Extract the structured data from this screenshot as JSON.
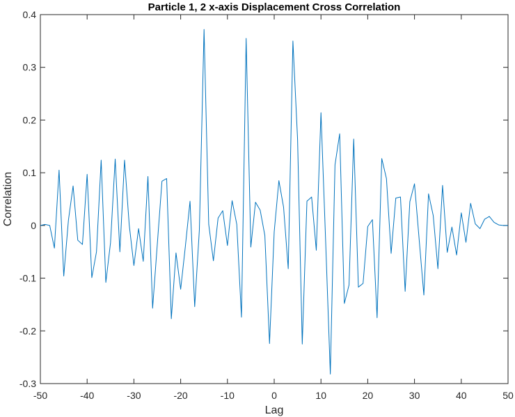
{
  "chart_data": {
    "type": "line",
    "title": "Particle 1, 2 x-axis Displacement Cross Correlation",
    "xlabel": "Lag",
    "ylabel": "Correlation",
    "xlim": [
      -50,
      50
    ],
    "ylim": [
      -0.3,
      0.4
    ],
    "xticks": [
      -50,
      -40,
      -30,
      -20,
      -10,
      0,
      10,
      20,
      30,
      40,
      50
    ],
    "xtick_labels": [
      "-50",
      "-40",
      "-30",
      "-20",
      "-10",
      "0",
      "10",
      "20",
      "30",
      "40",
      "50"
    ],
    "yticks": [
      -0.3,
      -0.2,
      -0.1,
      0,
      0.1,
      0.2,
      0.3,
      0.4
    ],
    "ytick_labels": [
      "-0.3",
      "-0.2",
      "-0.1",
      "0",
      "0.1",
      "0.2",
      "0.3",
      "0.4"
    ],
    "grid": false,
    "legend": null,
    "series_color": "#0072BD",
    "x": [
      -50,
      -49,
      -48,
      -47,
      -46,
      -45,
      -44,
      -43,
      -42,
      -41,
      -40,
      -39,
      -38,
      -37,
      -36,
      -35,
      -34,
      -33,
      -32,
      -31,
      -30,
      -29,
      -28,
      -27,
      -26,
      -25,
      -24,
      -23,
      -22,
      -21,
      -20,
      -19,
      -18,
      -17,
      -16,
      -15,
      -14,
      -13,
      -12,
      -11,
      -10,
      -9,
      -8,
      -7,
      -6,
      -5,
      -4,
      -3,
      -2,
      -1,
      0,
      1,
      2,
      3,
      4,
      5,
      6,
      7,
      8,
      9,
      10,
      11,
      12,
      13,
      14,
      15,
      16,
      17,
      18,
      19,
      20,
      21,
      22,
      23,
      24,
      25,
      26,
      27,
      28,
      29,
      30,
      31,
      32,
      33,
      34,
      35,
      36,
      37,
      38,
      39,
      40,
      41,
      42,
      43,
      44,
      45,
      46,
      47,
      48,
      49,
      50
    ],
    "series": [
      {
        "name": "Cross Correlation",
        "values": [
          0.0,
          0.002,
          0.0,
          -0.043,
          0.105,
          -0.096,
          0.01,
          0.075,
          -0.028,
          -0.036,
          0.097,
          -0.099,
          -0.05,
          0.124,
          -0.108,
          -0.033,
          0.126,
          -0.05,
          0.124,
          0.001,
          -0.076,
          -0.006,
          -0.068,
          0.093,
          -0.157,
          -0.036,
          0.084,
          0.089,
          -0.177,
          -0.052,
          -0.121,
          -0.04,
          0.046,
          -0.154,
          -0.008,
          0.372,
          0.002,
          -0.067,
          0.014,
          0.028,
          -0.038,
          0.047,
          0.002,
          -0.174,
          0.355,
          -0.041,
          0.044,
          0.029,
          -0.019,
          -0.224,
          -0.012,
          0.085,
          0.035,
          -0.082,
          0.35,
          0.163,
          -0.225,
          0.046,
          0.054,
          -0.047,
          0.214,
          -0.03,
          -0.282,
          0.115,
          0.174,
          -0.148,
          -0.113,
          0.164,
          -0.117,
          -0.11,
          -0.002,
          0.011,
          -0.175,
          0.127,
          0.089,
          -0.053,
          0.052,
          0.054,
          -0.125,
          0.045,
          0.079,
          -0.027,
          -0.132,
          0.06,
          0.019,
          -0.082,
          0.076,
          -0.051,
          -0.003,
          -0.056,
          0.024,
          -0.032,
          0.042,
          0.003,
          -0.006,
          0.012,
          0.017,
          0.006,
          0.001,
          0.0,
          0.0
        ]
      }
    ]
  }
}
